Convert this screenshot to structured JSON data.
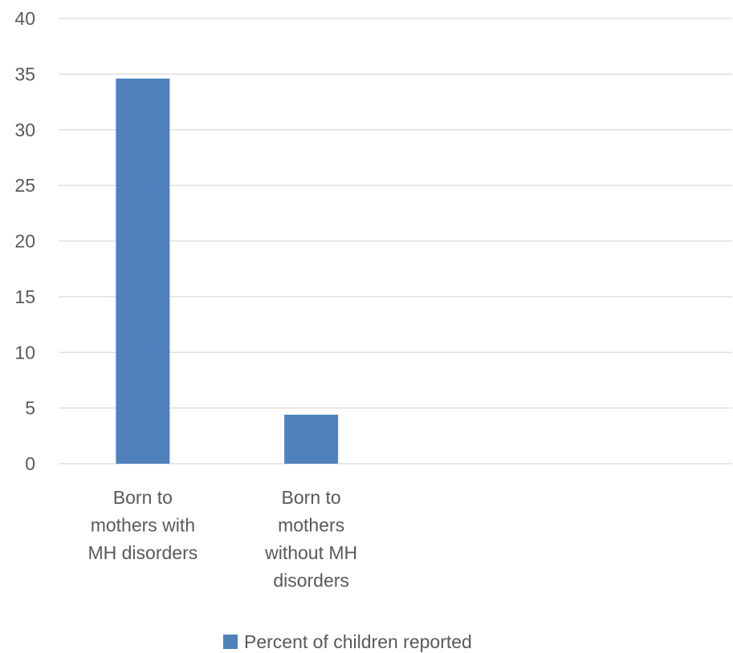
{
  "chart_data": {
    "type": "bar",
    "categories": [
      [
        "Born to",
        "mothers with",
        "MH disorders"
      ],
      [
        "Born to",
        "mothers",
        "without MH",
        "disorders"
      ],
      [],
      []
    ],
    "series": [
      {
        "name": "Percent of children reported",
        "values": [
          34.6,
          4.4,
          null,
          null
        ]
      }
    ],
    "ylim": [
      0,
      40
    ],
    "yticks": [
      0,
      5,
      10,
      15,
      20,
      25,
      30,
      35,
      40
    ],
    "grid": true,
    "legend_position": "bottom",
    "colors": {
      "bar": "#4f81bd",
      "grid": "#d9d9d9",
      "text": "#595959"
    }
  }
}
